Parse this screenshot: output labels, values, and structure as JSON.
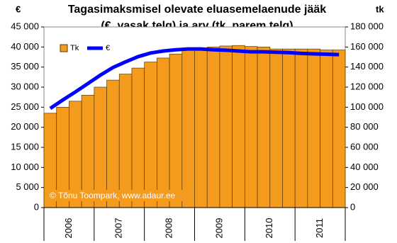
{
  "chart_data": {
    "type": "bar_line",
    "title": [
      "Tagasimaksmisel olevate eluasemelaenude jääk",
      "(€, vasak telg) ja arv (tk, parem telg)"
    ],
    "y_axis_label": "€",
    "y2_axis_label": "tk",
    "annotation": "© Tõnu Toompark, www.adaur.ee",
    "categories": [
      null,
      null,
      null,
      null,
      null,
      null,
      null,
      null,
      null,
      null,
      null,
      null,
      null,
      null,
      null,
      null,
      null,
      null,
      null,
      null,
      null,
      null,
      null,
      null
    ],
    "year_labels": [
      "2006",
      "2007",
      "2008",
      "2009",
      "2010",
      "2011"
    ],
    "series": [
      {
        "name": "Tk",
        "type": "bar",
        "axis": "y2",
        "color": "#f49a1c",
        "values": [
          94000,
          100000,
          106000,
          112000,
          120000,
          127000,
          133000,
          139000,
          145000,
          149000,
          153000,
          157000,
          159000,
          160000,
          161000,
          161500,
          160500,
          160000,
          158000,
          158000,
          158000,
          158000,
          157000,
          157000
        ]
      },
      {
        "name": "€",
        "type": "line",
        "color": "#0000ff",
        "values": [
          24700,
          26800,
          28800,
          30900,
          33000,
          34900,
          36300,
          37600,
          38500,
          39000,
          39300,
          39500,
          39500,
          39300,
          39200,
          39000,
          38800,
          38800,
          38700,
          38600,
          38400,
          38300,
          38200,
          38100
        ]
      }
    ],
    "ylim": [
      0,
      45000
    ],
    "yticks": [
      0,
      {
        "value": 5000,
        "label": "5 000"
      },
      {
        "value": 10000,
        "label": "10 000"
      },
      {
        "value": 15000,
        "label": "15 000"
      },
      {
        "value": 20000,
        "label": "20 000"
      },
      {
        "value": 25000,
        "label": "25 000"
      },
      {
        "value": 30000,
        "label": "30 000"
      },
      {
        "value": 35000,
        "label": "35 000"
      },
      {
        "value": 40000,
        "label": "40 000"
      },
      {
        "value": 45000,
        "label": "45 000"
      }
    ],
    "y2lim": [
      0,
      180000
    ],
    "y2ticks": [
      0,
      {
        "value": 20000,
        "label": "20 000"
      },
      {
        "value": 40000,
        "label": "40 000"
      },
      {
        "value": 60000,
        "label": "60 000"
      },
      {
        "value": 80000,
        "label": "80 000"
      },
      {
        "value": 100000,
        "label": "100 000"
      },
      {
        "value": 120000,
        "label": "120 000"
      },
      {
        "value": 140000,
        "label": "140 000"
      },
      {
        "value": 160000,
        "label": "160 000"
      },
      {
        "value": 180000,
        "label": "180 000"
      }
    ],
    "legend": "top-left"
  }
}
